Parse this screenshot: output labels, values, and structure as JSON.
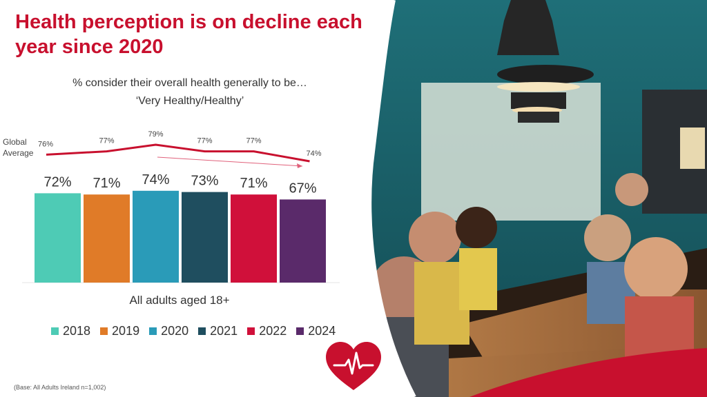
{
  "title": "Health perception is on decline each year since 2020",
  "subtitle_line1": "% consider their overall health generally to be…",
  "subtitle_line2": "‘Very Healthy/Healthy’",
  "global_label_line1": "Global",
  "global_label_line2": "Average",
  "xlabel": "All adults aged 18+",
  "base_note": "(Base: All Adults Ireland  n=1,002)",
  "colors": {
    "title": "#c8102e",
    "global_line": "#c8102e",
    "trend_arrow": "#e0607a"
  },
  "chart_data": {
    "type": "bar",
    "categories": [
      "2018",
      "2019",
      "2020",
      "2021",
      "2022",
      "2024"
    ],
    "series": [
      {
        "name": "All adults aged 18+",
        "values": [
          72,
          71,
          74,
          73,
          71,
          67
        ],
        "labels": [
          "72%",
          "71%",
          "74%",
          "73%",
          "71%",
          "67%"
        ],
        "colors": [
          "#4ecbb5",
          "#e07b28",
          "#2a9bb8",
          "#1f4e5f",
          "#d0103a",
          "#5a2a6a"
        ]
      },
      {
        "name": "Global Average",
        "type": "line",
        "values": [
          76,
          77,
          79,
          77,
          77,
          74
        ],
        "labels": [
          "76%",
          "77%",
          "79%",
          "77%",
          "77%",
          "74%"
        ]
      }
    ],
    "legend": [
      "2018",
      "2019",
      "2020",
      "2021",
      "2022",
      "2024"
    ],
    "legend_position": "bottom"
  }
}
